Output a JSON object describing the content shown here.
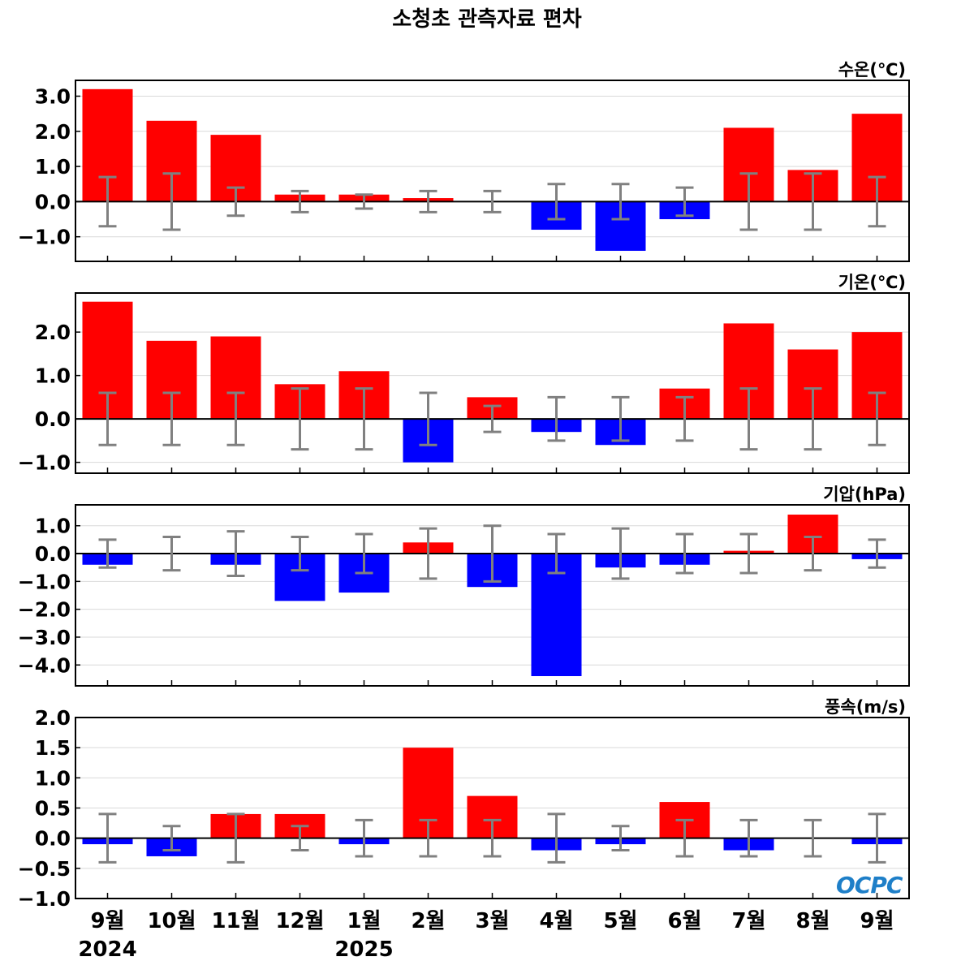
{
  "chart_data": {
    "type": "bar",
    "title": "소청초 관측자료 편차",
    "categories": [
      "9월",
      "10월",
      "11월",
      "12월",
      "1월",
      "2월",
      "3월",
      "4월",
      "5월",
      "6월",
      "7월",
      "8월",
      "9월"
    ],
    "year_labels": [
      {
        "category_index": 0,
        "label": "2024"
      },
      {
        "category_index": 4,
        "label": "2025"
      }
    ],
    "colors": {
      "positive": "#ff0000",
      "negative": "#0000ff",
      "error_bar": "#808080",
      "zero_line": "#000000",
      "grid": "#d9d9d9"
    },
    "logo": "OCPC",
    "panels": [
      {
        "label": "수온(℃)",
        "ylim": [
          -1.7,
          3.45
        ],
        "yticks": [
          "3.0",
          "2.0",
          "1.0",
          "0.0",
          "−1.0"
        ],
        "ytick_values": [
          3,
          2,
          1,
          0,
          -1
        ],
        "values": [
          3.2,
          2.3,
          1.9,
          0.2,
          0.2,
          0.1,
          0.0,
          -0.8,
          -1.4,
          -0.5,
          2.1,
          0.9,
          2.5
        ],
        "error": [
          0.7,
          0.8,
          0.4,
          0.3,
          0.2,
          0.3,
          0.3,
          0.5,
          0.5,
          0.4,
          0.8,
          0.8,
          0.7
        ]
      },
      {
        "label": "기온(℃)",
        "ylim": [
          -1.25,
          2.9
        ],
        "yticks": [
          "2.0",
          "1.0",
          "0.0",
          "−1.0"
        ],
        "ytick_values": [
          2,
          1,
          0,
          -1
        ],
        "values": [
          2.7,
          1.8,
          1.9,
          0.8,
          1.1,
          -1.0,
          0.5,
          -0.3,
          -0.6,
          0.7,
          2.2,
          1.6,
          2.0
        ],
        "error": [
          0.6,
          0.6,
          0.6,
          0.7,
          0.7,
          0.6,
          0.3,
          0.5,
          0.5,
          0.5,
          0.7,
          0.7,
          0.6
        ]
      },
      {
        "label": "기압(hPa)",
        "ylim": [
          -4.75,
          1.75
        ],
        "yticks": [
          "1.0",
          "0.0",
          "−1.0",
          "−2.0",
          "−3.0",
          "−4.0"
        ],
        "ytick_values": [
          1,
          0,
          -1,
          -2,
          -3,
          -4
        ],
        "values": [
          -0.4,
          0.0,
          -0.4,
          -1.7,
          -1.4,
          0.4,
          -1.2,
          -4.4,
          -0.5,
          -0.4,
          0.1,
          1.4,
          -0.2
        ],
        "error": [
          0.5,
          0.6,
          0.8,
          0.6,
          0.7,
          0.9,
          1.0,
          0.7,
          0.9,
          0.7,
          0.7,
          0.6,
          0.5
        ]
      },
      {
        "label": "풍속(m/s)",
        "ylim": [
          -1.0,
          2.0
        ],
        "yticks": [
          "2.0",
          "1.5",
          "1.0",
          "0.5",
          "0.0",
          "−0.5",
          "−1.0"
        ],
        "ytick_values": [
          2,
          1.5,
          1,
          0.5,
          0,
          -0.5,
          -1
        ],
        "values": [
          -0.1,
          -0.3,
          0.4,
          0.4,
          -0.1,
          1.5,
          0.7,
          -0.2,
          -0.1,
          0.6,
          -0.2,
          0.0,
          -0.1
        ],
        "error": [
          0.4,
          0.2,
          0.4,
          0.2,
          0.3,
          0.3,
          0.3,
          0.4,
          0.2,
          0.3,
          0.3,
          0.3,
          0.4
        ]
      }
    ]
  }
}
